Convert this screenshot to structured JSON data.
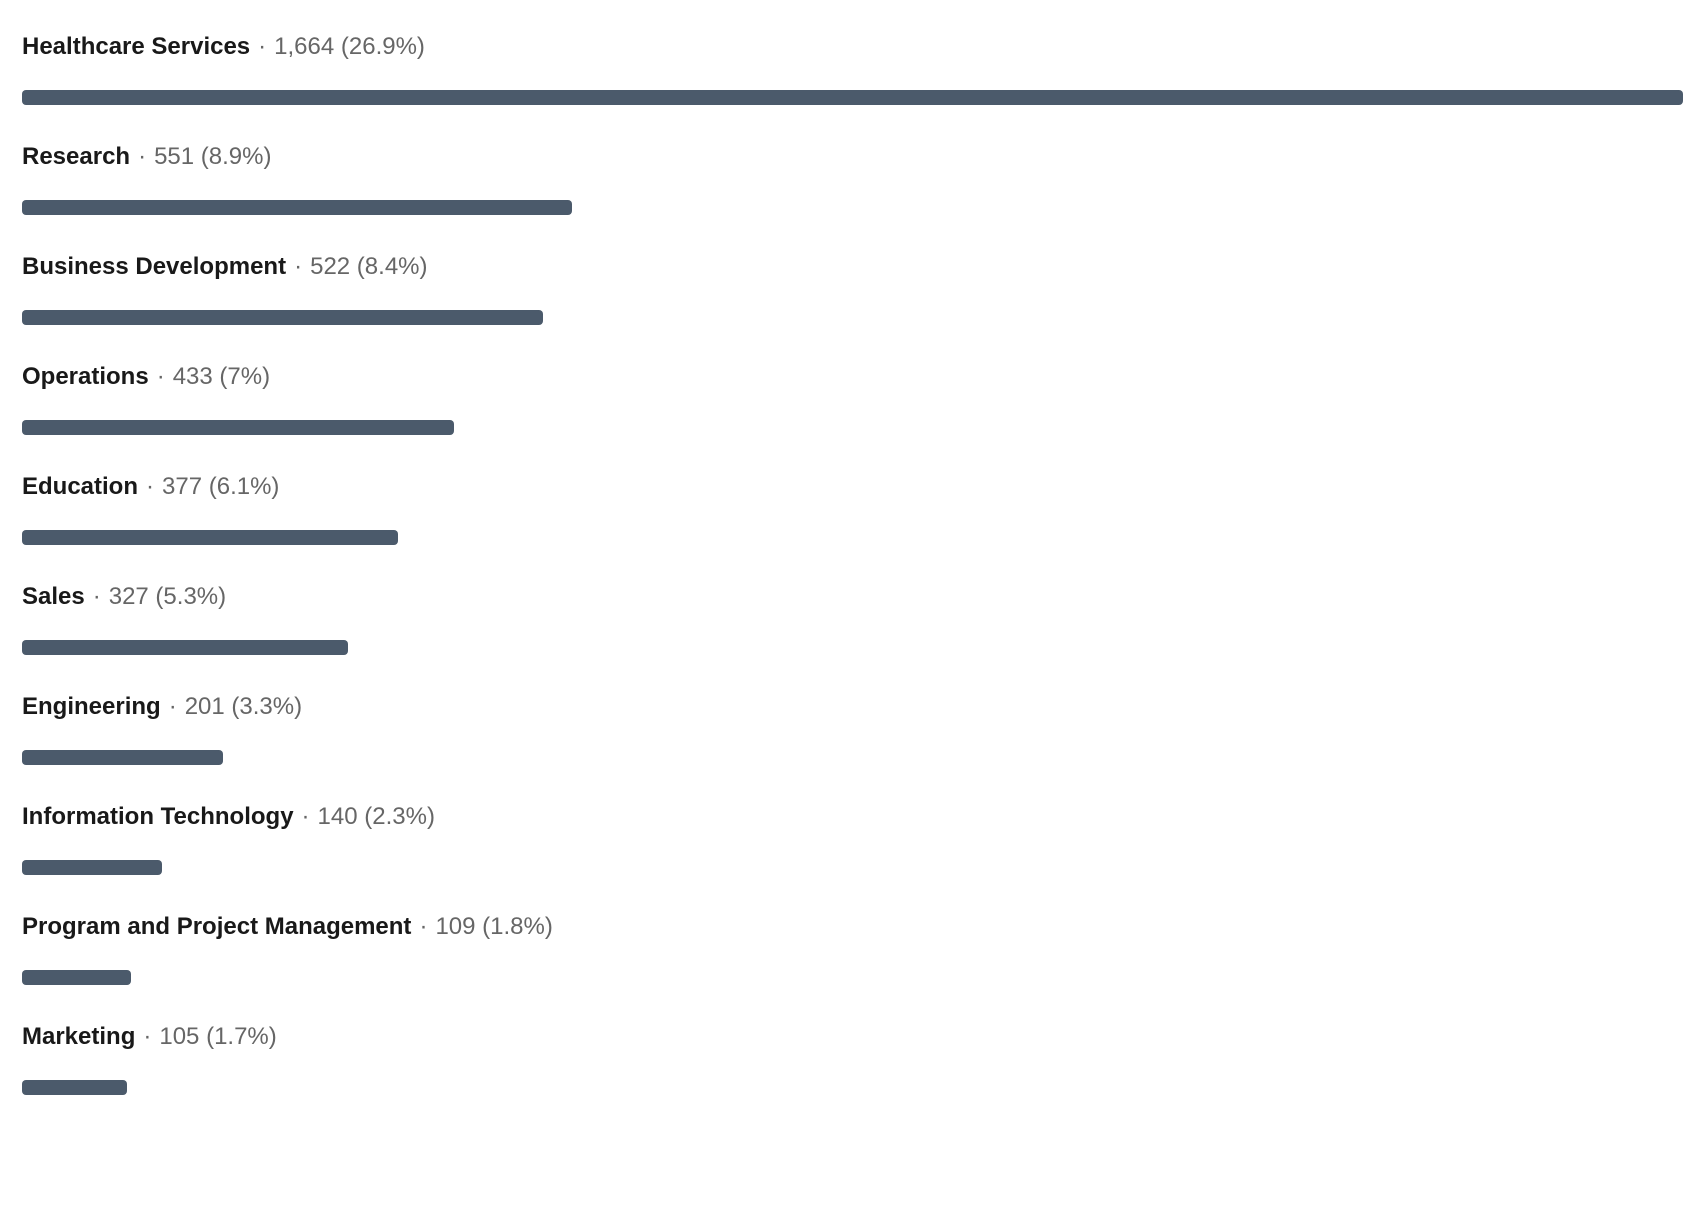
{
  "chart_data": {
    "type": "bar",
    "orientation": "horizontal",
    "title": "",
    "xlabel": "",
    "ylabel": "",
    "grid": false,
    "legend": false,
    "xlim": [
      0,
      1664
    ],
    "separator": "·",
    "categories": [
      "Healthcare Services",
      "Research",
      "Business Development",
      "Operations",
      "Education",
      "Sales",
      "Engineering",
      "Information Technology",
      "Program and Project Management",
      "Marketing"
    ],
    "values": [
      1664,
      551,
      522,
      433,
      377,
      327,
      201,
      140,
      109,
      105
    ],
    "percentages": [
      26.9,
      8.9,
      8.4,
      7,
      6.1,
      5.3,
      3.3,
      2.3,
      1.8,
      1.7
    ],
    "value_display": [
      "1,664 (26.9%)",
      "551 (8.9%)",
      "522 (8.4%)",
      "433 (7%)",
      "377 (6.1%)",
      "327 (5.3%)",
      "201 (3.3%)",
      "140 (2.3%)",
      "109 (1.8%)",
      "105 (1.7%)"
    ],
    "colors": {
      "bar": "#4B5A6B",
      "label": "#191919",
      "value": "#666666",
      "background": "#FFFFFF"
    }
  }
}
